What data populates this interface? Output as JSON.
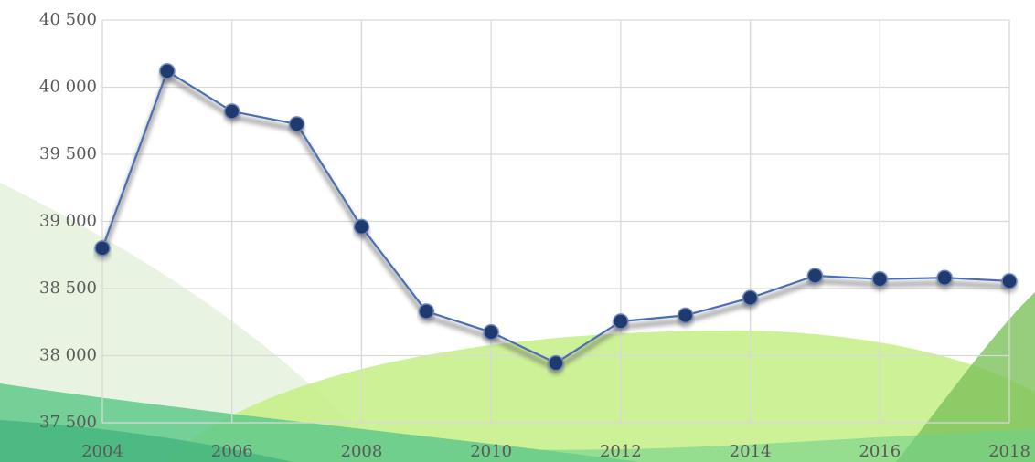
{
  "chart_data": {
    "type": "line",
    "x": [
      2004,
      2005,
      2006,
      2007,
      2008,
      2009,
      2010,
      2011,
      2012,
      2013,
      2014,
      2015,
      2016,
      2017,
      2018
    ],
    "values": [
      38800,
      40120,
      39820,
      39725,
      38960,
      38330,
      38175,
      37945,
      38255,
      38300,
      38430,
      38595,
      38570,
      38580,
      38555
    ],
    "color": "#4a6fb5",
    "marker_color": "#1f3a6e",
    "xlim": [
      2004,
      2018
    ],
    "xticks": [
      2004,
      2006,
      2008,
      2010,
      2012,
      2014,
      2016,
      2018
    ],
    "ylim": [
      37500,
      40500
    ],
    "yticks": [
      {
        "value": 37500,
        "label": "37 500"
      },
      {
        "value": 38000,
        "label": "38 000"
      },
      {
        "value": 38500,
        "label": "38 500"
      },
      {
        "value": 39000,
        "label": "39 000"
      },
      {
        "value": 39500,
        "label": "39 500"
      },
      {
        "value": 40000,
        "label": "40 000"
      },
      {
        "value": 40500,
        "label": "40 500"
      }
    ],
    "grid": true
  }
}
